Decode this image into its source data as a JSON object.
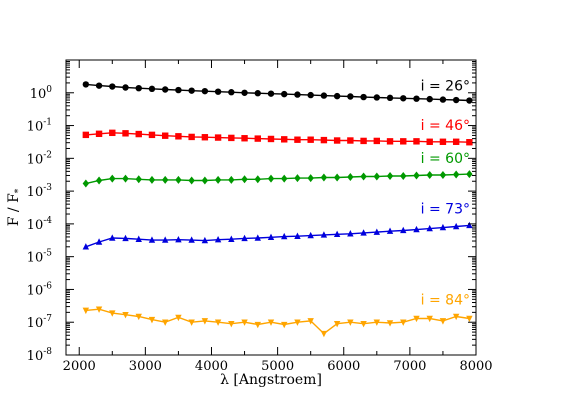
{
  "chart_data": {
    "type": "line",
    "title": "",
    "xlabel": "λ [Angstroem]",
    "ylabel": "F / F",
    "ylabel_subscript": "*",
    "x_scale": "linear",
    "y_scale": "log",
    "xlim": [
      1800,
      8000
    ],
    "ylim_exponent": [
      -8,
      1
    ],
    "x_ticks": [
      2000,
      3000,
      4000,
      5000,
      6000,
      7000,
      8000
    ],
    "x_tick_labels": [
      "2000",
      "3000",
      "4000",
      "5000",
      "6000",
      "7000",
      "8000"
    ],
    "y_tick_exponents": [
      -8,
      -7,
      -6,
      -5,
      -4,
      -3,
      -2,
      -1,
      0
    ],
    "y_tick_base": "10",
    "grid": false,
    "legend": "none",
    "x": [
      2100,
      2300,
      2500,
      2700,
      2900,
      3100,
      3300,
      3500,
      3700,
      3900,
      4100,
      4300,
      4500,
      4700,
      4900,
      5100,
      5300,
      5500,
      5700,
      5900,
      6100,
      6300,
      6500,
      6700,
      6900,
      7100,
      7300,
      7500,
      7700,
      7900
    ],
    "series": [
      {
        "name": "i = 26°",
        "color": "#000000",
        "marker": "circle",
        "values": [
          1.8,
          1.65,
          1.55,
          1.45,
          1.38,
          1.32,
          1.26,
          1.21,
          1.16,
          1.12,
          1.08,
          1.04,
          1.0,
          0.97,
          0.94,
          0.91,
          0.88,
          0.85,
          0.82,
          0.79,
          0.77,
          0.74,
          0.72,
          0.7,
          0.68,
          0.66,
          0.64,
          0.62,
          0.6,
          0.58
        ]
      },
      {
        "name": "i = 46°",
        "color": "#ff0000",
        "marker": "square",
        "values": [
          0.052,
          0.056,
          0.06,
          0.058,
          0.055,
          0.052,
          0.049,
          0.047,
          0.045,
          0.044,
          0.043,
          0.042,
          0.041,
          0.04,
          0.039,
          0.038,
          0.037,
          0.037,
          0.036,
          0.035,
          0.035,
          0.034,
          0.034,
          0.033,
          0.033,
          0.033,
          0.032,
          0.032,
          0.032,
          0.031
        ]
      },
      {
        "name": "i = 60°",
        "color": "#009900",
        "marker": "diamond",
        "values": [
          0.0017,
          0.0021,
          0.0024,
          0.0024,
          0.0023,
          0.0022,
          0.0022,
          0.0022,
          0.0021,
          0.0021,
          0.0022,
          0.0022,
          0.0023,
          0.0023,
          0.0024,
          0.0024,
          0.0025,
          0.0025,
          0.0026,
          0.0026,
          0.0027,
          0.0028,
          0.0028,
          0.0029,
          0.0029,
          0.003,
          0.0031,
          0.0031,
          0.0032,
          0.0033
        ]
      },
      {
        "name": "i = 73°",
        "color": "#0000dd",
        "marker": "triangle-up",
        "values": [
          2e-05,
          2.8e-05,
          3.7e-05,
          3.6e-05,
          3.4e-05,
          3.2e-05,
          3.2e-05,
          3.3e-05,
          3.2e-05,
          3.1e-05,
          3.3e-05,
          3.4e-05,
          3.6e-05,
          3.7e-05,
          3.9e-05,
          4.1e-05,
          4.2e-05,
          4.4e-05,
          4.6e-05,
          4.8e-05,
          5e-05,
          5.3e-05,
          5.6e-05,
          6e-05,
          6.3e-05,
          6.7e-05,
          7.2e-05,
          7.7e-05,
          8.3e-05,
          9e-05
        ]
      },
      {
        "name": "i = 84°",
        "color": "#ffa500",
        "marker": "triangle-down",
        "values": [
          2.3e-07,
          2.5e-07,
          1.9e-07,
          1.7e-07,
          1.5e-07,
          1.2e-07,
          1e-07,
          1.4e-07,
          1e-07,
          1.1e-07,
          1e-07,
          9e-08,
          1e-07,
          8.5e-08,
          1e-07,
          8.5e-08,
          1e-07,
          1.1e-07,
          4.5e-08,
          9e-08,
          1e-07,
          9e-08,
          1e-07,
          9.5e-08,
          1e-07,
          1.3e-07,
          1.3e-07,
          1.1e-07,
          1.5e-07,
          1.3e-07
        ]
      }
    ]
  }
}
